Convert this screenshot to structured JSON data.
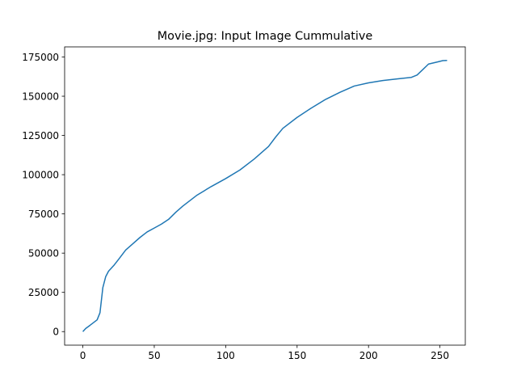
{
  "chart_data": {
    "type": "line",
    "title": "Movie.jpg: Input Image Cummulative",
    "x": [
      0,
      2,
      5,
      10,
      12,
      13,
      14,
      16,
      18,
      22,
      25,
      30,
      35,
      40,
      45,
      50,
      55,
      60,
      65,
      70,
      80,
      90,
      100,
      110,
      120,
      130,
      135,
      140,
      150,
      160,
      170,
      180,
      190,
      200,
      210,
      220,
      230,
      234,
      238,
      242,
      248,
      252,
      255
    ],
    "series": [
      {
        "color": "#1f77b4",
        "values": [
          0,
          2000,
          4000,
          7500,
          12000,
          20000,
          28000,
          35000,
          38500,
          42500,
          46000,
          52000,
          56000,
          60000,
          63500,
          66000,
          68500,
          71500,
          76000,
          80000,
          87000,
          92500,
          97500,
          103000,
          110000,
          118000,
          124000,
          129500,
          136500,
          142500,
          148000,
          152500,
          156500,
          158500,
          160000,
          161000,
          162000,
          163500,
          167000,
          170500,
          171800,
          172700,
          172800
        ]
      }
    ],
    "xlim": [
      -12.75,
      267.75
    ],
    "ylim": [
      -8640,
      181440
    ],
    "xticks": [
      0,
      50,
      100,
      150,
      200,
      250
    ],
    "yticks": [
      0,
      25000,
      50000,
      75000,
      100000,
      125000,
      150000,
      175000
    ]
  }
}
